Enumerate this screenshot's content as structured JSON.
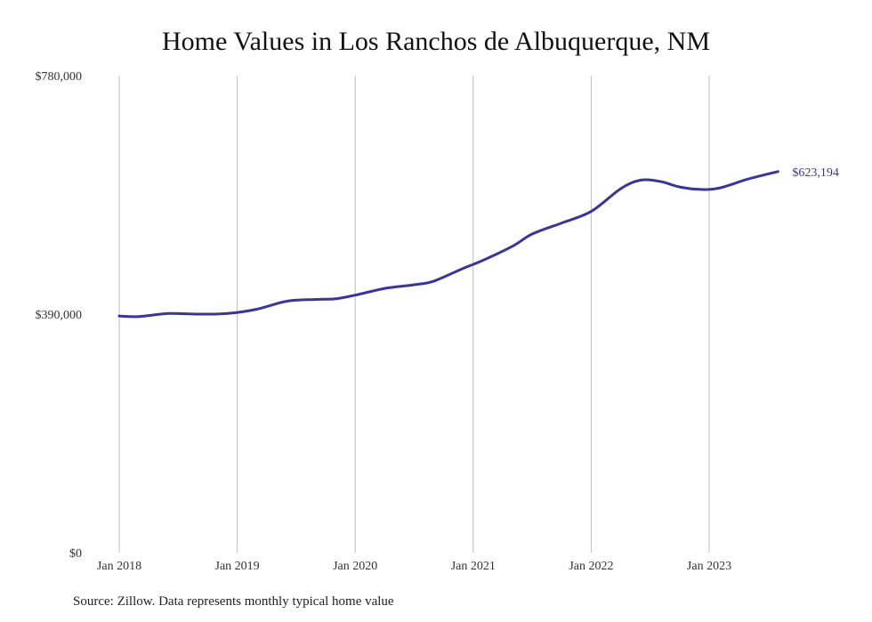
{
  "chart_data": {
    "type": "line",
    "title": "Home Values in Los Ranchos de Albuquerque, NM",
    "xlabel": "",
    "ylabel": "",
    "ylim": [
      0,
      780000
    ],
    "y_ticks": [
      "$780,000",
      "$390,000",
      "$0"
    ],
    "x_ticks": [
      "Jan 2018",
      "Jan 2019",
      "Jan 2020",
      "Jan 2021",
      "Jan 2022",
      "Jan 2023"
    ],
    "line_color": "#3a3596",
    "grid": "vertical",
    "end_label": "$623,194",
    "series": [
      {
        "values": [
          {
            "x": "2018-01",
            "y": 387000
          },
          {
            "x": "2018-03",
            "y": 386000
          },
          {
            "x": "2018-06",
            "y": 391000
          },
          {
            "x": "2018-09",
            "y": 390000
          },
          {
            "x": "2018-12",
            "y": 391000
          },
          {
            "x": "2019-03",
            "y": 398000
          },
          {
            "x": "2019-06",
            "y": 411000
          },
          {
            "x": "2019-09",
            "y": 414000
          },
          {
            "x": "2019-11",
            "y": 415000
          },
          {
            "x": "2020-01",
            "y": 421000
          },
          {
            "x": "2020-04",
            "y": 432000
          },
          {
            "x": "2020-07",
            "y": 438000
          },
          {
            "x": "2020-09",
            "y": 444000
          },
          {
            "x": "2020-12",
            "y": 465000
          },
          {
            "x": "2021-02",
            "y": 478000
          },
          {
            "x": "2021-05",
            "y": 501000
          },
          {
            "x": "2021-07",
            "y": 521000
          },
          {
            "x": "2021-10",
            "y": 539000
          },
          {
            "x": "2022-01",
            "y": 558000
          },
          {
            "x": "2022-04",
            "y": 595000
          },
          {
            "x": "2022-06",
            "y": 609000
          },
          {
            "x": "2022-08",
            "y": 607000
          },
          {
            "x": "2022-10",
            "y": 598000
          },
          {
            "x": "2022-12",
            "y": 594000
          },
          {
            "x": "2023-02",
            "y": 596000
          },
          {
            "x": "2023-05",
            "y": 611000
          },
          {
            "x": "2023-08",
            "y": 623194
          }
        ]
      }
    ]
  },
  "source_note": "Source: Zillow. Data represents monthly typical home value"
}
